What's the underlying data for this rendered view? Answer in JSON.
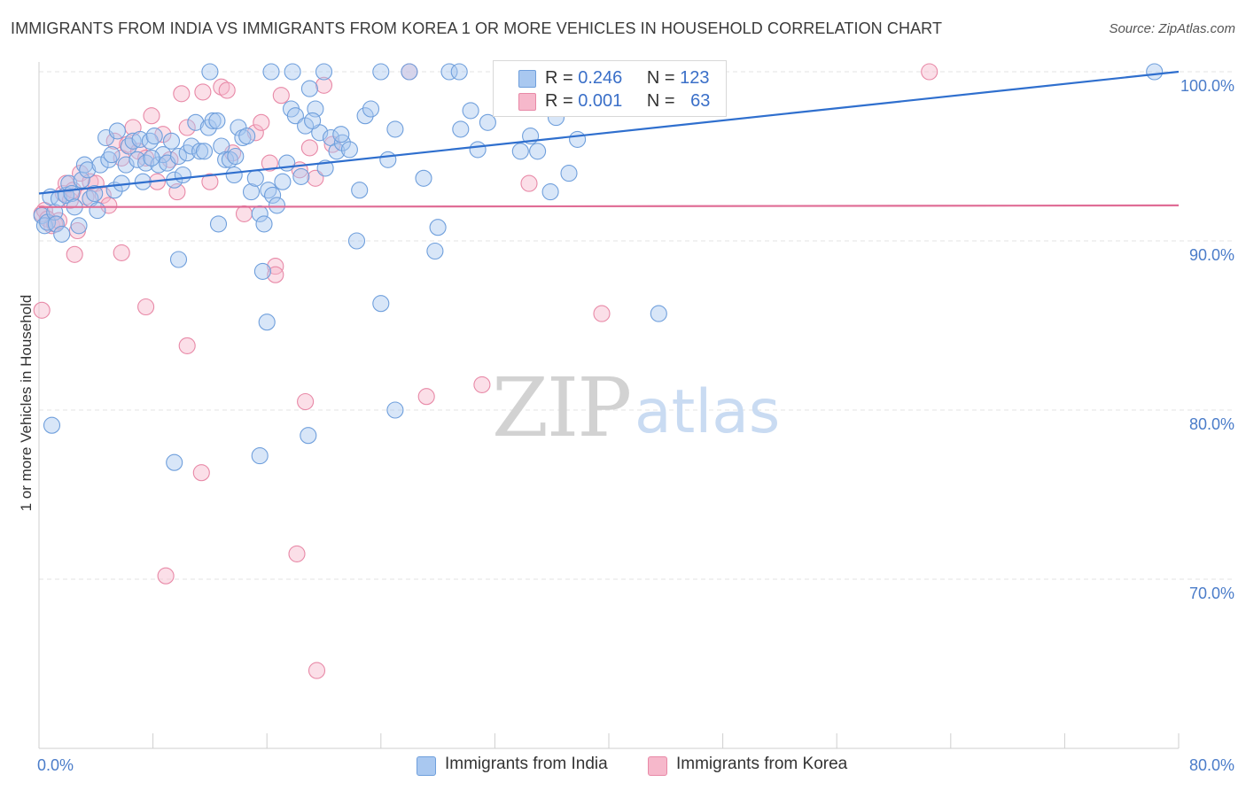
{
  "title": "IMMIGRANTS FROM INDIA VS IMMIGRANTS FROM KOREA 1 OR MORE VEHICLES IN HOUSEHOLD CORRELATION CHART",
  "source": "Source: ZipAtlas.com",
  "watermark": {
    "zip": "ZIP",
    "atlas": "atlas"
  },
  "colors": {
    "india_fill": "#a9c8f0",
    "india_stroke": "#6f9fdc",
    "india_line": "#2f6fce",
    "korea_fill": "#f6b8cb",
    "korea_stroke": "#e889a7",
    "korea_line": "#e06d96",
    "axis_label": "#4a7cc9",
    "grid": "#e3e3e3"
  },
  "legend": {
    "india": {
      "r_label": "R = ",
      "r_value": "0.246",
      "n_label": "N = ",
      "n_value": "123"
    },
    "korea": {
      "r_label": "R = ",
      "r_value": "0.001",
      "n_label": "N = ",
      "n_value": "63"
    }
  },
  "chart_data": {
    "type": "scatter",
    "title": "IMMIGRANTS FROM INDIA VS IMMIGRANTS FROM KOREA 1 OR MORE VEHICLES IN HOUSEHOLD CORRELATION CHART",
    "xlabel": "",
    "ylabel": "1 or more Vehicles in Household",
    "xlim": [
      0,
      80
    ],
    "ylim": [
      61.5,
      101.5
    ],
    "x_tick_labels": [
      "0.0%",
      "80.0%"
    ],
    "y_ticks": [
      70,
      80,
      90,
      100
    ],
    "y_tick_labels": [
      "70.0%",
      "80.0%",
      "90.0%",
      "100.0%"
    ],
    "grid": true,
    "legend_position": "top-center",
    "series": [
      {
        "name": "Immigrants from India",
        "R": 0.246,
        "N": 123,
        "trend": {
          "x": [
            0,
            80
          ],
          "y": [
            92.8,
            100.0
          ]
        },
        "points": [
          [
            0.2,
            91.5
          ],
          [
            0.4,
            90.9
          ],
          [
            0.6,
            91.1
          ],
          [
            0.8,
            92.6
          ],
          [
            1.1,
            91.7
          ],
          [
            1.2,
            91.0
          ],
          [
            1.4,
            92.5
          ],
          [
            1.6,
            90.4
          ],
          [
            1.9,
            92.7
          ],
          [
            2.1,
            93.4
          ],
          [
            2.3,
            92.8
          ],
          [
            2.5,
            92.0
          ],
          [
            2.8,
            90.9
          ],
          [
            3.0,
            93.6
          ],
          [
            3.2,
            94.5
          ],
          [
            3.4,
            94.2
          ],
          [
            3.6,
            92.5
          ],
          [
            3.9,
            92.8
          ],
          [
            4.1,
            91.8
          ],
          [
            4.3,
            94.5
          ],
          [
            4.7,
            96.1
          ],
          [
            4.9,
            94.8
          ],
          [
            5.1,
            95.1
          ],
          [
            5.3,
            93.0
          ],
          [
            5.5,
            96.5
          ],
          [
            5.8,
            93.4
          ],
          [
            6.1,
            94.5
          ],
          [
            6.3,
            95.6
          ],
          [
            6.6,
            95.9
          ],
          [
            6.9,
            94.8
          ],
          [
            7.1,
            96.0
          ],
          [
            7.3,
            93.5
          ],
          [
            7.5,
            94.6
          ],
          [
            7.8,
            95.9
          ],
          [
            8.1,
            96.2
          ],
          [
            8.4,
            94.5
          ],
          [
            8.7,
            95.1
          ],
          [
            9.0,
            94.6
          ],
          [
            9.3,
            95.9
          ],
          [
            9.5,
            93.6
          ],
          [
            9.8,
            95.0
          ],
          [
            10.1,
            93.9
          ],
          [
            10.4,
            95.2
          ],
          [
            10.7,
            95.6
          ],
          [
            11.0,
            97.0
          ],
          [
            11.3,
            95.3
          ],
          [
            11.6,
            95.3
          ],
          [
            11.9,
            96.7
          ],
          [
            12.2,
            97.1
          ],
          [
            12.5,
            97.1
          ],
          [
            12.8,
            95.6
          ],
          [
            13.1,
            94.8
          ],
          [
            13.4,
            94.8
          ],
          [
            13.7,
            93.9
          ],
          [
            14.0,
            96.7
          ],
          [
            14.3,
            96.1
          ],
          [
            14.6,
            96.2
          ],
          [
            14.9,
            92.9
          ],
          [
            15.2,
            93.7
          ],
          [
            15.5,
            91.6
          ],
          [
            15.8,
            91.0
          ],
          [
            16.1,
            93.0
          ],
          [
            16.4,
            92.7
          ],
          [
            16.7,
            92.1
          ],
          [
            17.1,
            93.5
          ],
          [
            17.4,
            94.6
          ],
          [
            17.7,
            97.8
          ],
          [
            18.0,
            97.4
          ],
          [
            18.4,
            93.8
          ],
          [
            18.7,
            96.8
          ],
          [
            19.0,
            99.0
          ],
          [
            19.4,
            97.8
          ],
          [
            19.7,
            96.4
          ],
          [
            20.1,
            94.3
          ],
          [
            20.5,
            96.1
          ],
          [
            20.9,
            95.3
          ],
          [
            21.3,
            95.8
          ],
          [
            21.8,
            95.4
          ],
          [
            22.5,
            93.0
          ],
          [
            22.9,
            97.4
          ],
          [
            23.3,
            97.8
          ],
          [
            24.0,
            100.0
          ],
          [
            24.5,
            94.8
          ],
          [
            25.0,
            96.6
          ],
          [
            26.0,
            100.0
          ],
          [
            27.0,
            93.7
          ],
          [
            28.0,
            90.8
          ],
          [
            28.8,
            100.0
          ],
          [
            29.6,
            96.6
          ],
          [
            30.3,
            97.7
          ],
          [
            30.8,
            95.4
          ],
          [
            31.5,
            97.0
          ],
          [
            32.8,
            100.0
          ],
          [
            33.8,
            95.3
          ],
          [
            34.5,
            96.2
          ],
          [
            35.0,
            95.3
          ],
          [
            35.9,
            92.9
          ],
          [
            36.3,
            97.3
          ],
          [
            37.2,
            94.0
          ],
          [
            37.8,
            96.0
          ],
          [
            13.8,
            95.0
          ],
          [
            7.9,
            94.9
          ],
          [
            9.8,
            88.9
          ],
          [
            12.6,
            91.0
          ],
          [
            15.7,
            88.2
          ],
          [
            19.2,
            97.1
          ],
          [
            21.2,
            96.3
          ],
          [
            22.3,
            90.0
          ],
          [
            27.8,
            89.4
          ],
          [
            24.0,
            86.3
          ],
          [
            43.5,
            85.7
          ],
          [
            16.0,
            85.2
          ],
          [
            0.9,
            79.1
          ],
          [
            9.5,
            76.9
          ],
          [
            15.5,
            77.3
          ],
          [
            18.9,
            78.5
          ],
          [
            25.0,
            80.0
          ],
          [
            16.3,
            100.0
          ],
          [
            17.8,
            100.0
          ],
          [
            20.0,
            100.0
          ],
          [
            29.5,
            100.0
          ],
          [
            78.3,
            100.0
          ],
          [
            12.0,
            100.0
          ]
        ]
      },
      {
        "name": "Immigrants from Korea",
        "R": 0.001,
        "N": 63,
        "trend": {
          "x": [
            0,
            80
          ],
          "y": [
            92.0,
            92.1
          ]
        },
        "points": [
          [
            0.2,
            91.6
          ],
          [
            0.4,
            91.8
          ],
          [
            0.6,
            91.3
          ],
          [
            0.9,
            90.9
          ],
          [
            1.1,
            91.0
          ],
          [
            1.4,
            91.2
          ],
          [
            1.7,
            92.8
          ],
          [
            1.9,
            93.4
          ],
          [
            2.2,
            92.4
          ],
          [
            2.4,
            93.0
          ],
          [
            2.7,
            90.6
          ],
          [
            2.9,
            94.0
          ],
          [
            3.3,
            92.6
          ],
          [
            3.6,
            93.5
          ],
          [
            4.0,
            93.4
          ],
          [
            4.5,
            92.7
          ],
          [
            4.9,
            92.1
          ],
          [
            5.3,
            95.9
          ],
          [
            5.8,
            94.9
          ],
          [
            6.2,
            95.7
          ],
          [
            6.6,
            96.7
          ],
          [
            7.0,
            95.3
          ],
          [
            7.5,
            94.9
          ],
          [
            7.9,
            97.4
          ],
          [
            8.3,
            93.5
          ],
          [
            8.7,
            96.3
          ],
          [
            9.2,
            94.8
          ],
          [
            9.7,
            92.9
          ],
          [
            10.0,
            98.7
          ],
          [
            10.4,
            96.7
          ],
          [
            11.5,
            98.8
          ],
          [
            12.0,
            93.5
          ],
          [
            12.8,
            99.1
          ],
          [
            13.2,
            98.9
          ],
          [
            13.6,
            95.2
          ],
          [
            14.4,
            91.6
          ],
          [
            15.2,
            96.4
          ],
          [
            15.6,
            97.0
          ],
          [
            16.2,
            94.6
          ],
          [
            17.0,
            98.6
          ],
          [
            18.3,
            94.2
          ],
          [
            19.0,
            95.5
          ],
          [
            19.4,
            93.7
          ],
          [
            20.0,
            99.2
          ],
          [
            20.6,
            95.7
          ],
          [
            34.4,
            93.4
          ],
          [
            2.5,
            89.2
          ],
          [
            5.8,
            89.3
          ],
          [
            16.6,
            88.5
          ],
          [
            16.6,
            88.0
          ],
          [
            7.5,
            86.1
          ],
          [
            0.2,
            85.9
          ],
          [
            39.5,
            85.7
          ],
          [
            10.4,
            83.8
          ],
          [
            18.7,
            80.5
          ],
          [
            27.2,
            80.8
          ],
          [
            31.1,
            81.5
          ],
          [
            11.4,
            76.3
          ],
          [
            8.9,
            70.2
          ],
          [
            18.1,
            71.5
          ],
          [
            19.5,
            64.6
          ],
          [
            62.5,
            100.0
          ],
          [
            26.0,
            100.0
          ]
        ]
      }
    ]
  },
  "bottom_legend": {
    "india": "Immigrants from India",
    "korea": "Immigrants from Korea"
  }
}
